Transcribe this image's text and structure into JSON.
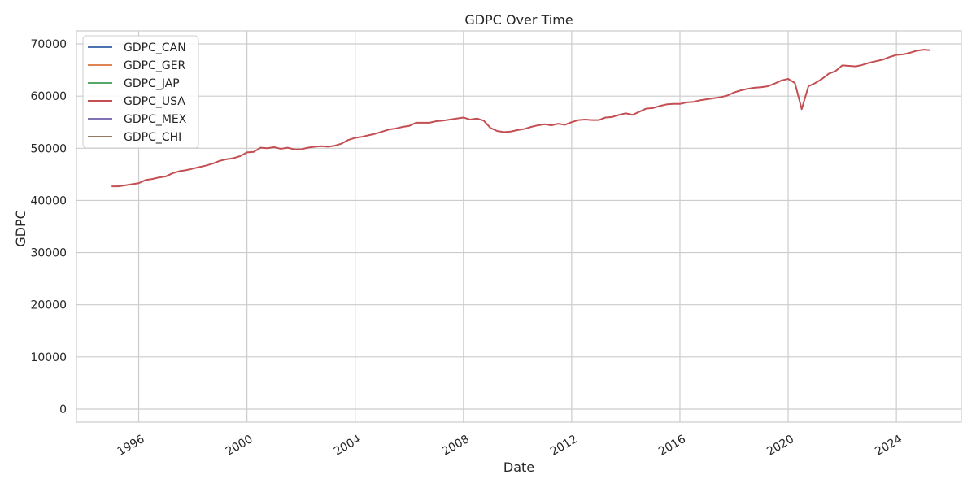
{
  "chart_data": {
    "type": "line",
    "title": "GDPC Over Time",
    "xlabel": "Date",
    "ylabel": "GDPC",
    "xlim": [
      1993.7,
      2026.4
    ],
    "ylim": [
      -2500,
      72500
    ],
    "x_ticks": [
      1996,
      2000,
      2004,
      2008,
      2012,
      2016,
      2020,
      2024
    ],
    "y_ticks": [
      0,
      10000,
      20000,
      30000,
      40000,
      50000,
      60000,
      70000
    ],
    "grid": true,
    "legend_position": "top-left",
    "series": [
      {
        "name": "GDPC_CAN",
        "color": "#4c72b0",
        "points": []
      },
      {
        "name": "GDPC_GER",
        "color": "#dd8452",
        "points": []
      },
      {
        "name": "GDPC_JAP",
        "color": "#55a868",
        "points": []
      },
      {
        "name": "GDPC_USA",
        "color": "#c44e52",
        "points": [
          [
            1995.0,
            42700
          ],
          [
            1995.25,
            42700
          ],
          [
            1995.5,
            42900
          ],
          [
            1995.75,
            43100
          ],
          [
            1996.0,
            43300
          ],
          [
            1996.25,
            43900
          ],
          [
            1996.5,
            44100
          ],
          [
            1996.75,
            44400
          ],
          [
            1997.0,
            44600
          ],
          [
            1997.25,
            45200
          ],
          [
            1997.5,
            45600
          ],
          [
            1997.75,
            45800
          ],
          [
            1998.0,
            46100
          ],
          [
            1998.25,
            46400
          ],
          [
            1998.5,
            46700
          ],
          [
            1998.75,
            47100
          ],
          [
            1999.0,
            47600
          ],
          [
            1999.25,
            47900
          ],
          [
            1999.5,
            48100
          ],
          [
            1999.75,
            48500
          ],
          [
            2000.0,
            49200
          ],
          [
            2000.25,
            49300
          ],
          [
            2000.5,
            50100
          ],
          [
            2000.75,
            50000
          ],
          [
            2001.0,
            50200
          ],
          [
            2001.25,
            49900
          ],
          [
            2001.5,
            50100
          ],
          [
            2001.75,
            49800
          ],
          [
            2002.0,
            49800
          ],
          [
            2002.25,
            50100
          ],
          [
            2002.5,
            50300
          ],
          [
            2002.75,
            50400
          ],
          [
            2003.0,
            50300
          ],
          [
            2003.25,
            50500
          ],
          [
            2003.5,
            50900
          ],
          [
            2003.75,
            51600
          ],
          [
            2004.0,
            52000
          ],
          [
            2004.25,
            52200
          ],
          [
            2004.5,
            52500
          ],
          [
            2004.75,
            52800
          ],
          [
            2005.0,
            53200
          ],
          [
            2005.25,
            53600
          ],
          [
            2005.5,
            53800
          ],
          [
            2005.75,
            54100
          ],
          [
            2006.0,
            54300
          ],
          [
            2006.25,
            54900
          ],
          [
            2006.5,
            54900
          ],
          [
            2006.75,
            54900
          ],
          [
            2007.0,
            55200
          ],
          [
            2007.25,
            55300
          ],
          [
            2007.5,
            55500
          ],
          [
            2007.75,
            55700
          ],
          [
            2008.0,
            55900
          ],
          [
            2008.25,
            55500
          ],
          [
            2008.5,
            55700
          ],
          [
            2008.75,
            55300
          ],
          [
            2009.0,
            53900
          ],
          [
            2009.25,
            53300
          ],
          [
            2009.5,
            53100
          ],
          [
            2009.75,
            53200
          ],
          [
            2010.0,
            53500
          ],
          [
            2010.25,
            53700
          ],
          [
            2010.5,
            54100
          ],
          [
            2010.75,
            54400
          ],
          [
            2011.0,
            54600
          ],
          [
            2011.25,
            54400
          ],
          [
            2011.5,
            54700
          ],
          [
            2011.75,
            54500
          ],
          [
            2012.0,
            55000
          ],
          [
            2012.25,
            55400
          ],
          [
            2012.5,
            55500
          ],
          [
            2012.75,
            55400
          ],
          [
            2013.0,
            55400
          ],
          [
            2013.25,
            55900
          ],
          [
            2013.5,
            56000
          ],
          [
            2013.75,
            56400
          ],
          [
            2014.0,
            56700
          ],
          [
            2014.25,
            56400
          ],
          [
            2014.5,
            57000
          ],
          [
            2014.75,
            57600
          ],
          [
            2015.0,
            57700
          ],
          [
            2015.25,
            58100
          ],
          [
            2015.5,
            58400
          ],
          [
            2015.75,
            58500
          ],
          [
            2016.0,
            58500
          ],
          [
            2016.25,
            58800
          ],
          [
            2016.5,
            58900
          ],
          [
            2016.75,
            59200
          ],
          [
            2017.0,
            59400
          ],
          [
            2017.25,
            59600
          ],
          [
            2017.5,
            59800
          ],
          [
            2017.75,
            60100
          ],
          [
            2018.0,
            60700
          ],
          [
            2018.25,
            61100
          ],
          [
            2018.5,
            61400
          ],
          [
            2018.75,
            61600
          ],
          [
            2019.0,
            61700
          ],
          [
            2019.25,
            61900
          ],
          [
            2019.5,
            62400
          ],
          [
            2019.75,
            63000
          ],
          [
            2020.0,
            63300
          ],
          [
            2020.25,
            62500
          ],
          [
            2020.5,
            57500
          ],
          [
            2020.75,
            61900
          ],
          [
            2021.0,
            62500
          ],
          [
            2021.25,
            63300
          ],
          [
            2021.5,
            64300
          ],
          [
            2021.75,
            64800
          ],
          [
            2022.0,
            65900
          ],
          [
            2022.25,
            65800
          ],
          [
            2022.5,
            65700
          ],
          [
            2022.75,
            66000
          ],
          [
            2023.0,
            66400
          ],
          [
            2023.25,
            66700
          ],
          [
            2023.5,
            67000
          ],
          [
            2023.75,
            67500
          ],
          [
            2024.0,
            67900
          ],
          [
            2024.25,
            68000
          ],
          [
            2024.5,
            68300
          ],
          [
            2024.75,
            68700
          ],
          [
            2025.0,
            68900
          ],
          [
            2025.25,
            68800
          ]
        ]
      },
      {
        "name": "GDPC_MEX",
        "color": "#8172b3",
        "points": []
      },
      {
        "name": "GDPC_CHI",
        "color": "#937860",
        "points": []
      }
    ]
  }
}
